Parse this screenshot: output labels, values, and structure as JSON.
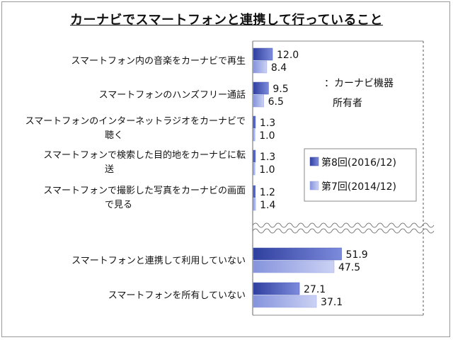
{
  "chart_data": {
    "type": "bar",
    "orientation": "horizontal",
    "title": "カーナビでスマートフォンと連携して行っていること",
    "note_line1": "：カーナビ機器",
    "note_line2": "所有者",
    "categories": [
      [
        "スマートフォン内の音楽をカーナビで再生"
      ],
      [
        "スマートフォンのハンズフリー通話"
      ],
      [
        "スマートフォンのインターネットラジオをカーナビで",
        "聴く"
      ],
      [
        "スマートフォンで検索した目的地をカーナビに転",
        "送"
      ],
      [
        "スマートフォンで撮影した写真をカーナビの画面",
        "で見る"
      ],
      [
        "スマートフォンと連携して利用していない"
      ],
      [
        "スマートフォンを所有していない"
      ]
    ],
    "series": [
      {
        "name": "第8回(2016/12)",
        "color": "#4a5cb8",
        "values": [
          12.0,
          9.5,
          1.3,
          1.3,
          1.2,
          51.9,
          27.1
        ],
        "labels": [
          "12.0",
          "9.5",
          "1.3",
          "1.3",
          "1.2",
          "51.9",
          "27.1"
        ]
      },
      {
        "name": "第7回(2014/12)",
        "color": "#9aa6e4",
        "values": [
          8.4,
          6.5,
          1.0,
          1.0,
          1.4,
          47.5,
          37.1
        ],
        "labels": [
          "8.4",
          "6.5",
          "1.0",
          "1.0",
          "1.4",
          "47.5",
          "37.1"
        ]
      }
    ],
    "axis_break": true,
    "legend_position": "right-middle"
  }
}
